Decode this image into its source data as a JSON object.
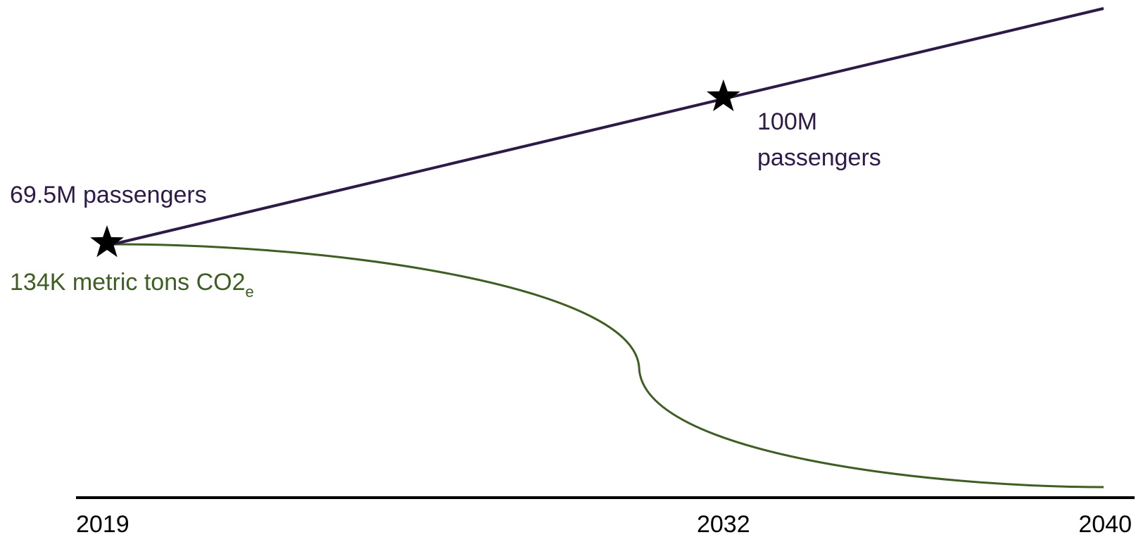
{
  "chart_data": {
    "type": "line",
    "x_ticks": [
      "2019",
      "2032",
      "2040"
    ],
    "series": [
      {
        "key": "passengers",
        "color": "#2e1a47",
        "points": [
          {
            "x": 2019,
            "y": 69.5
          },
          {
            "x": 2032,
            "y": 100
          },
          {
            "x": 2040,
            "y": 118.8
          }
        ],
        "unit": "M passengers"
      },
      {
        "key": "emissions",
        "color": "#3f5e24",
        "start_value": 134,
        "end_value": 0,
        "unit": "K metric tons CO2e",
        "shape": "S-curve decline"
      }
    ],
    "markers": [
      {
        "series": "passengers",
        "x": 2019,
        "symbol": "star"
      },
      {
        "series": "passengers",
        "x": 2032,
        "symbol": "star"
      }
    ],
    "annotations": {
      "passengers_start": "69.5M passengers",
      "passengers_mid_line1": "100M",
      "passengers_mid_line2": "passengers",
      "emissions_start_main": "134K metric tons CO2",
      "emissions_start_sub": "e"
    },
    "title": "",
    "xlabel": "",
    "ylabel": "",
    "grid": false,
    "legend": "none"
  }
}
